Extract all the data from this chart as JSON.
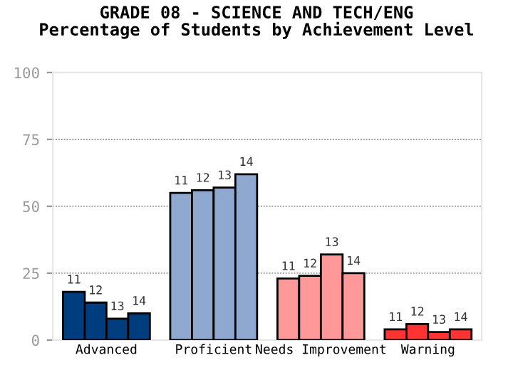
{
  "chart_data": {
    "type": "bar",
    "title": "GRADE 08 - SCIENCE AND TECH/ENG\nPercentage of Students by Achievement Level",
    "categories": [
      "Advanced",
      "Proficient",
      "Needs Improvement",
      "Warning"
    ],
    "series": [
      {
        "name": "11",
        "colors": [
          "#003d7f",
          "#8fa8cf",
          "#ff9999",
          "#ff3333"
        ],
        "values": [
          18,
          55,
          23,
          4
        ]
      },
      {
        "name": "12",
        "colors": [
          "#003d7f",
          "#8fa8cf",
          "#ff9999",
          "#ff3333"
        ],
        "values": [
          14,
          56,
          24,
          6
        ]
      },
      {
        "name": "13",
        "colors": [
          "#003d7f",
          "#8fa8cf",
          "#ff9999",
          "#ff3333"
        ],
        "values": [
          8,
          57,
          32,
          3
        ]
      },
      {
        "name": "14",
        "colors": [
          "#003d7f",
          "#8fa8cf",
          "#ff9999",
          "#ff3333"
        ],
        "values": [
          10,
          62,
          25,
          4
        ]
      }
    ],
    "ylim": [
      0,
      100
    ],
    "yticks": [
      0,
      25,
      50,
      75,
      100
    ],
    "grid": "y",
    "legend": false
  }
}
